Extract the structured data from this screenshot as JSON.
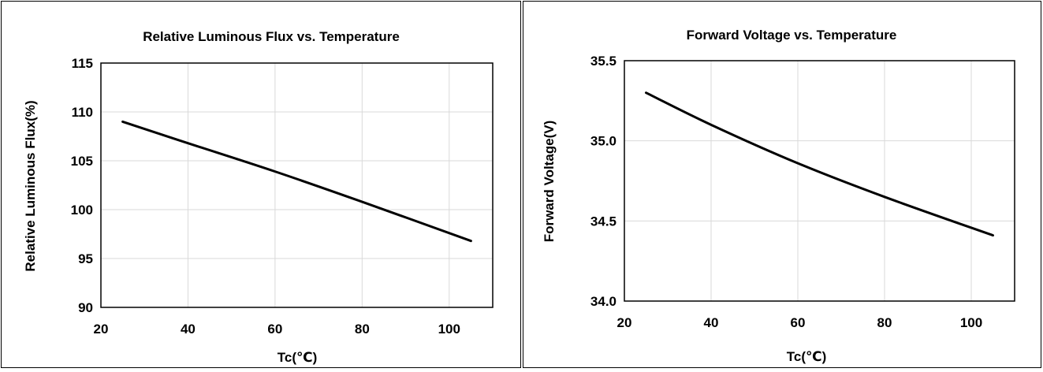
{
  "chart_data": [
    {
      "type": "line",
      "title": "Relative Luminous Flux vs. Temperature",
      "xlabel": "Tc(℃)",
      "ylabel": "Relative Luminous Flux(%)",
      "xlim": [
        20,
        110
      ],
      "ylim": [
        90,
        115
      ],
      "xticks": [
        20,
        40,
        60,
        80,
        100
      ],
      "yticks": [
        90,
        95,
        100,
        105,
        110,
        115
      ],
      "ytick_labels": [
        "90",
        "95",
        "100",
        "105",
        "110",
        "115"
      ],
      "grid": true,
      "legend": "none",
      "line_color": "#000000",
      "series": [
        {
          "x": [
            25,
            40,
            60,
            80,
            105
          ],
          "y": [
            109.0,
            106.8,
            103.9,
            100.8,
            96.8
          ]
        }
      ]
    },
    {
      "type": "line",
      "title": "Forward Voltage vs. Temperature",
      "xlabel": "Tc(℃)",
      "ylabel": "Forward Voltage(V)",
      "xlim": [
        20,
        110
      ],
      "ylim": [
        34.0,
        35.5
      ],
      "xticks": [
        20,
        40,
        60,
        80,
        100
      ],
      "yticks": [
        34.0,
        34.5,
        35.0,
        35.5
      ],
      "ytick_labels": [
        "34.0",
        "34.5",
        "35.0",
        "35.5"
      ],
      "grid": true,
      "legend": "none",
      "line_color": "#000000",
      "series": [
        {
          "x": [
            25,
            40,
            60,
            80,
            105
          ],
          "y": [
            35.3,
            35.1,
            34.86,
            34.65,
            34.41
          ]
        }
      ]
    }
  ]
}
